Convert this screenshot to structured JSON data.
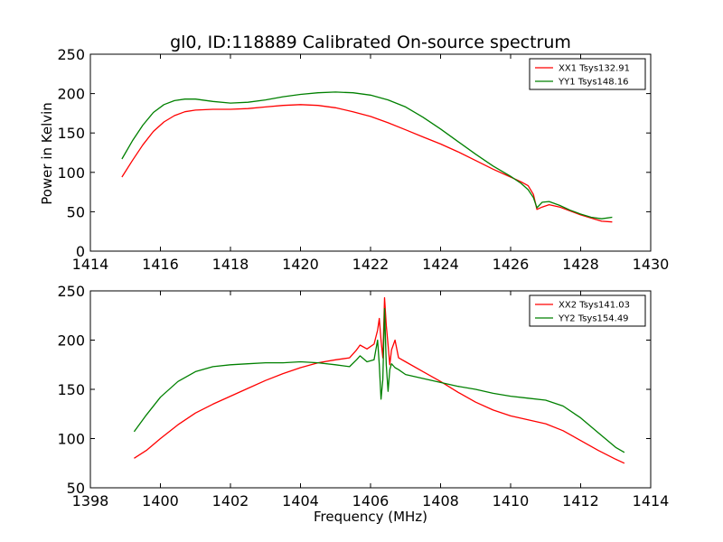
{
  "chart_data": [
    {
      "type": "line",
      "title": "gl0, ID:118889 Calibrated On-source spectrum",
      "xlabel": "",
      "ylabel": "Power in Kelvin",
      "xlim": [
        1414,
        1430
      ],
      "ylim": [
        0,
        250
      ],
      "xticks": [
        "1414",
        "1416",
        "1418",
        "1420",
        "1422",
        "1424",
        "1426",
        "1428",
        "1430"
      ],
      "yticks": [
        "0",
        "50",
        "100",
        "150",
        "200",
        "250"
      ],
      "grid": false,
      "legend_position": "top-right",
      "series": [
        {
          "name": "XX1 Tsys132.91",
          "color": "#ff0000",
          "x": [
            1414.9,
            1415.2,
            1415.5,
            1415.8,
            1416.1,
            1416.4,
            1416.7,
            1417.0,
            1417.5,
            1418.0,
            1418.5,
            1419.0,
            1419.5,
            1420.0,
            1420.5,
            1421.0,
            1421.5,
            1422.0,
            1422.5,
            1423.0,
            1423.5,
            1424.0,
            1424.5,
            1425.0,
            1425.5,
            1426.0,
            1426.3,
            1426.5,
            1426.65,
            1426.75,
            1426.9,
            1427.1,
            1427.4,
            1427.7,
            1428.0,
            1428.3,
            1428.6,
            1428.9
          ],
          "y": [
            94,
            115,
            135,
            152,
            164,
            172,
            177,
            179,
            180,
            180,
            181,
            183,
            185,
            186,
            185,
            182,
            177,
            171,
            163,
            154,
            145,
            136,
            126,
            115,
            104,
            94,
            88,
            83,
            72,
            53,
            56,
            59,
            56,
            51,
            46,
            42,
            38,
            37
          ]
        },
        {
          "name": "YY1 Tsys148.16",
          "color": "#008000",
          "x": [
            1414.9,
            1415.2,
            1415.5,
            1415.8,
            1416.1,
            1416.4,
            1416.7,
            1417.0,
            1417.5,
            1418.0,
            1418.5,
            1419.0,
            1419.5,
            1420.0,
            1420.5,
            1421.0,
            1421.5,
            1422.0,
            1422.5,
            1423.0,
            1423.5,
            1424.0,
            1424.5,
            1425.0,
            1425.5,
            1426.0,
            1426.3,
            1426.5,
            1426.65,
            1426.75,
            1426.9,
            1427.1,
            1427.4,
            1427.7,
            1428.0,
            1428.3,
            1428.6,
            1428.9
          ],
          "y": [
            117,
            140,
            160,
            176,
            186,
            191,
            193,
            193,
            190,
            188,
            189,
            192,
            196,
            199,
            201,
            202,
            201,
            198,
            192,
            183,
            170,
            155,
            139,
            123,
            108,
            95,
            86,
            78,
            68,
            55,
            62,
            63,
            58,
            52,
            47,
            43,
            41,
            43
          ]
        }
      ]
    },
    {
      "type": "line",
      "title": "",
      "xlabel": "Frequency (MHz)",
      "ylabel": "",
      "xlim": [
        1398,
        1414
      ],
      "ylim": [
        50,
        250
      ],
      "xticks": [
        "1398",
        "1400",
        "1402",
        "1404",
        "1406",
        "1408",
        "1410",
        "1412",
        "1414"
      ],
      "yticks": [
        "50",
        "100",
        "150",
        "200",
        "250"
      ],
      "grid": false,
      "legend_position": "top-right",
      "series": [
        {
          "name": "XX2 Tsys141.03",
          "color": "#ff0000",
          "x": [
            1399.25,
            1399.6,
            1400.0,
            1400.5,
            1401.0,
            1401.5,
            1402.0,
            1402.5,
            1403.0,
            1403.5,
            1404.0,
            1404.5,
            1405.0,
            1405.4,
            1405.6,
            1405.7,
            1405.9,
            1406.1,
            1406.2,
            1406.25,
            1406.3,
            1406.35,
            1406.4,
            1406.45,
            1406.5,
            1406.55,
            1406.6,
            1406.7,
            1406.8,
            1407.0,
            1407.5,
            1408.0,
            1408.5,
            1409.0,
            1409.5,
            1410.0,
            1410.5,
            1411.0,
            1411.5,
            1412.0,
            1412.5,
            1413.0,
            1413.25
          ],
          "y": [
            80,
            88,
            100,
            114,
            126,
            135,
            143,
            151,
            159,
            166,
            172,
            177,
            180,
            182,
            190,
            195,
            191,
            196,
            210,
            222,
            200,
            182,
            243,
            215,
            195,
            175,
            190,
            200,
            182,
            178,
            168,
            158,
            147,
            137,
            129,
            123,
            119,
            115,
            108,
            98,
            88,
            79,
            75
          ]
        },
        {
          "name": "YY2 Tsys154.49",
          "color": "#008000",
          "x": [
            1399.25,
            1399.6,
            1400.0,
            1400.5,
            1401.0,
            1401.5,
            1402.0,
            1402.5,
            1403.0,
            1403.5,
            1404.0,
            1404.5,
            1405.0,
            1405.4,
            1405.6,
            1405.7,
            1405.9,
            1406.1,
            1406.2,
            1406.25,
            1406.3,
            1406.35,
            1406.4,
            1406.45,
            1406.5,
            1406.55,
            1406.6,
            1406.7,
            1406.8,
            1407.0,
            1407.5,
            1408.0,
            1408.5,
            1409.0,
            1409.5,
            1410.0,
            1410.5,
            1411.0,
            1411.5,
            1412.0,
            1412.5,
            1413.0,
            1413.25
          ],
          "y": [
            107,
            124,
            142,
            158,
            168,
            173,
            175,
            176,
            177,
            177,
            178,
            177,
            175,
            173,
            180,
            184,
            178,
            180,
            200,
            175,
            140,
            160,
            232,
            175,
            148,
            170,
            176,
            172,
            170,
            165,
            161,
            157,
            153,
            150,
            146,
            143,
            141,
            139,
            133,
            121,
            106,
            91,
            86
          ]
        }
      ]
    }
  ]
}
